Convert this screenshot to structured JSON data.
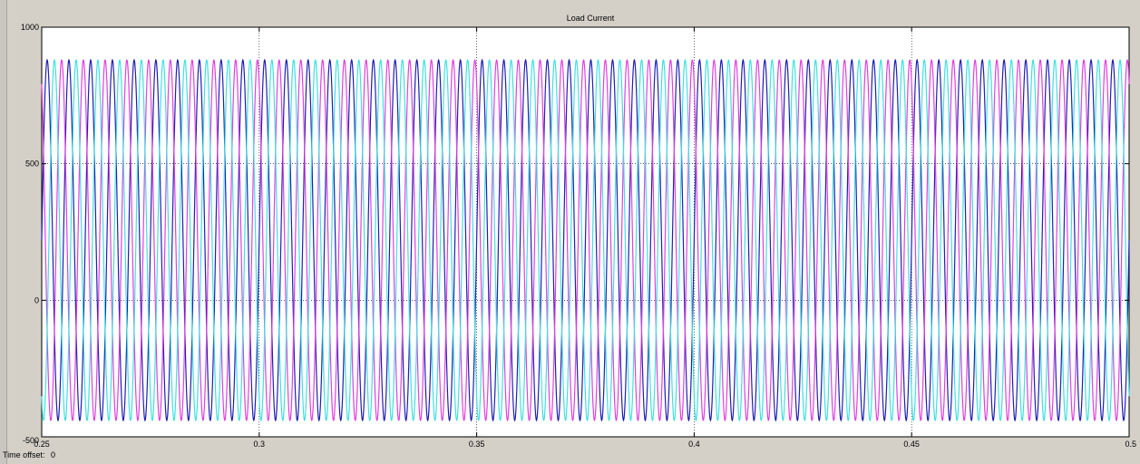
{
  "window": {
    "time_offset_label": "Time offset:",
    "time_offset_value": "0"
  },
  "chart_data": {
    "type": "line",
    "title": "Load Current",
    "xlabel": "",
    "ylabel": "",
    "xlim": [
      0.25,
      0.5
    ],
    "ylim": [
      -500,
      1000
    ],
    "xticks": [
      0.25,
      0.3,
      0.35,
      0.4,
      0.45,
      0.5
    ],
    "xtick_labels": [
      "0.25",
      "0.3",
      "0.35",
      "0.4",
      "0.45",
      "0.5"
    ],
    "yticks": [
      -500,
      0,
      500,
      1000
    ],
    "ytick_labels": [
      "-500",
      "0",
      "500",
      "1000"
    ],
    "grid": true,
    "background_color": "#ffffff",
    "series": [
      {
        "color": "#1f1fb4",
        "frequency_hz": 200,
        "amplitude": 660,
        "offset": 220,
        "phase_deg": 0
      },
      {
        "color": "#e040e0",
        "frequency_hz": 200,
        "amplitude": 660,
        "offset": 220,
        "phase_deg": 120
      },
      {
        "color": "#40e0e0",
        "frequency_hz": 200,
        "amplitude": 660,
        "offset": 220,
        "phase_deg": 240
      }
    ]
  }
}
